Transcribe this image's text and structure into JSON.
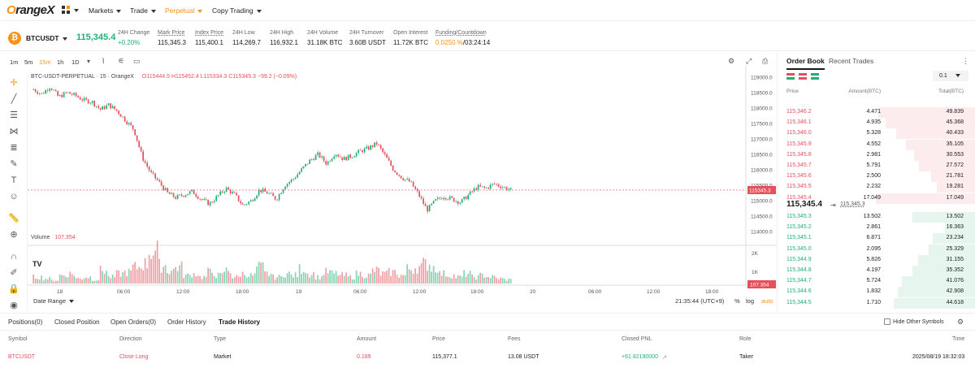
{
  "nav": {
    "logo": "OrangeX",
    "items": [
      {
        "label": "Markets",
        "active": false
      },
      {
        "label": "Trade",
        "active": false
      },
      {
        "label": "Perpetual",
        "active": true
      },
      {
        "label": "Copy Trading",
        "active": false
      }
    ]
  },
  "ticker": {
    "symbol": "BTCUSDT",
    "last_price": "115,345.4",
    "stats": [
      {
        "label": "24H Change",
        "value": "+0.20%"
      },
      {
        "label": "Mark Price",
        "value": "115,345.3"
      },
      {
        "label": "Index Price",
        "value": "115,400.1"
      },
      {
        "label": "24H Low",
        "value": "114,269.7"
      },
      {
        "label": "24H High",
        "value": "116,932.1"
      },
      {
        "label": "24H Volume",
        "value": "31.18K BTC"
      },
      {
        "label": "24H Turnover",
        "value": "3.60B USDT"
      },
      {
        "label": "Open Interest",
        "value": "11.72K BTC"
      },
      {
        "label": "Funding/Countdown",
        "value_rate": "0.0250 %",
        "value_countdown": "/03:24:14"
      }
    ]
  },
  "chart": {
    "intervals": [
      "1m",
      "5m",
      "15m",
      "1h",
      "1D"
    ],
    "active_interval": "15m",
    "title": "BTC-USDT-PERPETUAL · 15 · OrangeX",
    "ohlc": {
      "o": "O115444.5",
      "h": "H115452.4",
      "l": "L115334.3",
      "c": "C115345.3",
      "chg": "−99.2 (−0.09%)"
    },
    "volume_label": "Volume",
    "volume_value": "107.354",
    "date_range": "Date Range",
    "time": "21:35:44 (UTC+9)",
    "pct": "%",
    "log": "log",
    "auto": "auto",
    "last_price_tag": "115345.3",
    "volume_tag": "107.354",
    "tv_logo": "TV"
  },
  "chart_data": {
    "type": "candlestick",
    "y_ticks": [
      "119000.0",
      "118500.0",
      "118000.0",
      "117500.0",
      "117000.0",
      "116500.0",
      "116000.0",
      "115500.0",
      "115000.0",
      "114500.0",
      "114000.0"
    ],
    "vol_ticks": [
      "2K",
      "1K"
    ],
    "x_ticks": [
      "18",
      "06:00",
      "12:00",
      "18:00",
      "19",
      "06:00",
      "12:00",
      "18:00",
      "20",
      "06:00",
      "12:00",
      "18:00"
    ],
    "close_path": [
      118600,
      118450,
      118700,
      118350,
      118500,
      118400,
      118250,
      118200,
      117950,
      118100,
      117900,
      117600,
      117300,
      116400,
      115900,
      115600,
      115250,
      115100,
      115200,
      115300,
      115050,
      114900,
      115150,
      115400,
      115200,
      114850,
      115000,
      115350,
      115250,
      115050,
      115500,
      115700,
      116000,
      116300,
      116500,
      116200,
      116550,
      116350,
      116450,
      116600,
      116700,
      116850,
      116450,
      116000,
      115750,
      115600,
      115200,
      114700,
      115000,
      115150,
      115050,
      114950,
      115200,
      115450,
      115400,
      115550,
      115450,
      115350
    ],
    "volume_bars": [
      0.2,
      0.15,
      0.1,
      0.25,
      0.3,
      0.15,
      0.2,
      0.12,
      0.4,
      0.2,
      0.3,
      0.35,
      0.5,
      0.6,
      1.0,
      0.55,
      0.4,
      0.5,
      0.25,
      0.3,
      0.2,
      0.35,
      0.25,
      0.4,
      0.2,
      0.3,
      0.25,
      0.5,
      0.3,
      0.2,
      0.3,
      0.25,
      0.45,
      0.3,
      0.2,
      0.35,
      0.3,
      0.25,
      0.2,
      0.3,
      0.25,
      0.4,
      0.3,
      0.35,
      0.25,
      0.45,
      0.5,
      0.6,
      0.5,
      0.3,
      0.25,
      0.2,
      0.3,
      0.2,
      0.25,
      0.2,
      0.15,
      0.12
    ]
  },
  "orderbook": {
    "tabs": [
      "Order Book",
      "Recent Trades"
    ],
    "depth": "0.1",
    "headers": [
      "Price",
      "Amount(BTC)",
      "Total(BTC)"
    ],
    "asks": [
      {
        "price": "115,346.2",
        "amount": "4.471",
        "total": "49.839",
        "depth": 0.95
      },
      {
        "price": "115,346.1",
        "amount": "4.935",
        "total": "45.368",
        "depth": 0.88
      },
      {
        "price": "115,346.0",
        "amount": "5.328",
        "total": "40.433",
        "depth": 0.78
      },
      {
        "price": "115,345.9",
        "amount": "4.552",
        "total": "35.105",
        "depth": 0.68
      },
      {
        "price": "115,345.8",
        "amount": "2.981",
        "total": "30.553",
        "depth": 0.6
      },
      {
        "price": "115,345.7",
        "amount": "5.791",
        "total": "27.572",
        "depth": 0.55
      },
      {
        "price": "115,345.6",
        "amount": "2.500",
        "total": "21.781",
        "depth": 0.43
      },
      {
        "price": "115,345.5",
        "amount": "2.232",
        "total": "19.281",
        "depth": 0.38
      },
      {
        "price": "115,345.4",
        "amount": "17.049",
        "total": "17.049",
        "depth": 0.98
      }
    ],
    "mid_price": "115,345.4",
    "mid_mark": "115,345.3",
    "bids": [
      {
        "price": "115,345.3",
        "amount": "13.502",
        "total": "13.502",
        "depth": 0.62
      },
      {
        "price": "115,345.2",
        "amount": "2.861",
        "total": "16.363",
        "depth": 0.3
      },
      {
        "price": "115,345.1",
        "amount": "6.871",
        "total": "23.234",
        "depth": 0.42
      },
      {
        "price": "115,345.0",
        "amount": "2.095",
        "total": "25.329",
        "depth": 0.46
      },
      {
        "price": "115,344.9",
        "amount": "5.826",
        "total": "31.155",
        "depth": 0.56
      },
      {
        "price": "115,344.8",
        "amount": "4.197",
        "total": "35.352",
        "depth": 0.62
      },
      {
        "price": "115,344.7",
        "amount": "5.724",
        "total": "41.076",
        "depth": 0.72
      },
      {
        "price": "115,344.6",
        "amount": "1.832",
        "total": "42.908",
        "depth": 0.76
      },
      {
        "price": "115,344.5",
        "amount": "1.710",
        "total": "44.618",
        "depth": 0.8
      }
    ]
  },
  "bottom": {
    "tabs": [
      {
        "label": "Positions(0)",
        "active": false
      },
      {
        "label": "Closed Position",
        "active": false
      },
      {
        "label": "Open Orders(0)",
        "active": false
      },
      {
        "label": "Order History",
        "active": false
      },
      {
        "label": "Trade History",
        "active": true
      }
    ],
    "hide_other": "Hide Other Symbols",
    "columns": [
      "Symbol",
      "Direction",
      "Type",
      "Amount",
      "Price",
      "Fees",
      "Closed PNL",
      "Role",
      "Time"
    ],
    "rows": [
      {
        "symbol": "BTCUSDT",
        "direction": "Close Long",
        "type": "Market",
        "amount": "0.189",
        "price": "115,377.1",
        "fees": "13.08 USDT",
        "pnl": "+61.82190000",
        "role": "Taker",
        "time": "2025/08/19 18:32:03"
      }
    ]
  },
  "colors": {
    "up": "#21b074",
    "down": "#e5505b",
    "accent": "#f7931a"
  }
}
